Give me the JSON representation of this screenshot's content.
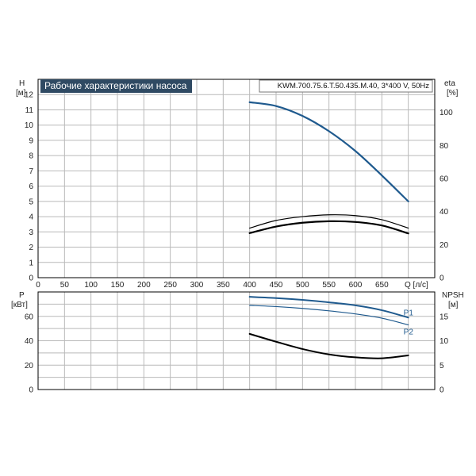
{
  "chart_data": [
    {
      "type": "line",
      "title": "Рабочие характеристики насоса",
      "model_label": "KWM.700.75.6.T.50.435.M.40, 3*400 V, 50Hz",
      "left_axis_label": "H",
      "left_axis_unit": "[м]",
      "right_axis_label": "eta",
      "right_axis_unit": "[%]",
      "x_axis_label": "Q [л/с]",
      "xlim": [
        0,
        750
      ],
      "ylim": [
        0,
        13
      ],
      "y2lim": [
        0,
        120
      ],
      "x_ticks": [
        "0",
        "50",
        "100",
        "150",
        "200",
        "250",
        "300",
        "350",
        "400",
        "450",
        "500",
        "550",
        "600",
        "650"
      ],
      "y_ticks": [
        "0",
        "1",
        "2",
        "3",
        "4",
        "5",
        "6",
        "7",
        "8",
        "9",
        "10",
        "11",
        "12"
      ],
      "y2_ticks": [
        "0",
        "20",
        "40",
        "60",
        "80",
        "100"
      ],
      "grid": true,
      "colors": {
        "head_curve": "#1f5a8e",
        "efficiency_curves": "#000000",
        "header_box": "#2f4a63"
      },
      "series": [
        {
          "x": [
            400,
            450,
            500,
            550,
            600,
            650,
            700
          ],
          "y": [
            11.5,
            11.25,
            10.6,
            9.6,
            8.3,
            6.7,
            5.0
          ]
        },
        {
          "x": [
            400,
            450,
            500,
            550,
            600,
            650,
            700
          ],
          "y": [
            3.25,
            3.75,
            4.0,
            4.12,
            4.07,
            3.8,
            3.25
          ]
        },
        {
          "x": [
            400,
            450,
            500,
            550,
            600,
            650,
            700
          ],
          "y": [
            2.92,
            3.35,
            3.6,
            3.7,
            3.65,
            3.42,
            2.9
          ]
        }
      ]
    },
    {
      "type": "line",
      "left_axis_label": "P",
      "left_axis_unit": "[кВт]",
      "right_axis_label": "NPSH",
      "right_axis_unit": "[м]",
      "xlim": [
        0,
        750
      ],
      "ylim": [
        0,
        80
      ],
      "y2lim": [
        0,
        20
      ],
      "y_ticks": [
        "0",
        "20",
        "40",
        "60"
      ],
      "y2_ticks": [
        "0",
        "5",
        "10",
        "15"
      ],
      "grid": true,
      "colors": {
        "P1": "#1f5a8e",
        "P2": "#1f5a8e",
        "NPSH": "#000000"
      },
      "series": [
        {
          "name": "P1",
          "x": [
            400,
            450,
            500,
            550,
            600,
            650,
            700
          ],
          "y": [
            76,
            75,
            73.5,
            71.5,
            69,
            65,
            59
          ]
        },
        {
          "name": "P2",
          "x": [
            400,
            450,
            500,
            550,
            600,
            650,
            700
          ],
          "y": [
            69,
            68,
            66.5,
            64.5,
            62,
            58.5,
            53
          ]
        },
        {
          "x": [
            400,
            450,
            500,
            550,
            600,
            650,
            700
          ],
          "y": [
            11.4,
            9.8,
            8.3,
            7.2,
            6.6,
            6.4,
            7.0
          ]
        }
      ]
    }
  ]
}
